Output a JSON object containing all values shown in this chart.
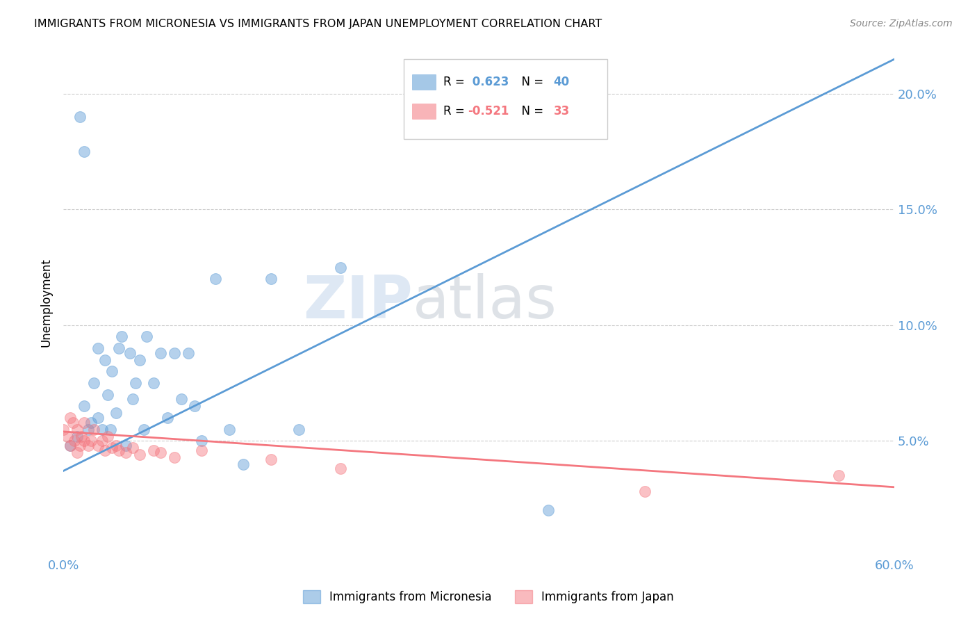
{
  "title": "IMMIGRANTS FROM MICRONESIA VS IMMIGRANTS FROM JAPAN UNEMPLOYMENT CORRELATION CHART",
  "source": "Source: ZipAtlas.com",
  "ylabel": "Unemployment",
  "xlim": [
    0.0,
    0.6
  ],
  "ylim": [
    0.0,
    0.22
  ],
  "yticks": [
    0.05,
    0.1,
    0.15,
    0.2
  ],
  "xtick_labels_shown": [
    0.0,
    0.6
  ],
  "xtick_minor": [
    0.1,
    0.2,
    0.3,
    0.4,
    0.5
  ],
  "grid_color": "#cccccc",
  "background_color": "#ffffff",
  "blue_color": "#5b9bd5",
  "pink_color": "#f4777f",
  "watermark_zip": "ZIP",
  "watermark_atlas": "atlas",
  "legend_R_blue": "0.623",
  "legend_N_blue": "40",
  "legend_R_pink": "-0.521",
  "legend_N_pink": "33",
  "micronesia_x": [
    0.005,
    0.01,
    0.012,
    0.015,
    0.018,
    0.02,
    0.022,
    0.025,
    0.025,
    0.028,
    0.03,
    0.032,
    0.034,
    0.035,
    0.038,
    0.04,
    0.042,
    0.045,
    0.048,
    0.05,
    0.052,
    0.055,
    0.058,
    0.06,
    0.065,
    0.07,
    0.075,
    0.08,
    0.085,
    0.09,
    0.095,
    0.1,
    0.11,
    0.12,
    0.13,
    0.15,
    0.17,
    0.2,
    0.35,
    0.015
  ],
  "micronesia_y": [
    0.048,
    0.052,
    0.19,
    0.065,
    0.055,
    0.058,
    0.075,
    0.06,
    0.09,
    0.055,
    0.085,
    0.07,
    0.055,
    0.08,
    0.062,
    0.09,
    0.095,
    0.048,
    0.088,
    0.068,
    0.075,
    0.085,
    0.055,
    0.095,
    0.075,
    0.088,
    0.06,
    0.088,
    0.068,
    0.088,
    0.065,
    0.05,
    0.12,
    0.055,
    0.04,
    0.12,
    0.055,
    0.125,
    0.02,
    0.175
  ],
  "japan_x": [
    0.0,
    0.003,
    0.005,
    0.005,
    0.007,
    0.008,
    0.01,
    0.01,
    0.012,
    0.013,
    0.015,
    0.015,
    0.018,
    0.02,
    0.022,
    0.025,
    0.028,
    0.03,
    0.032,
    0.035,
    0.038,
    0.04,
    0.045,
    0.05,
    0.055,
    0.065,
    0.07,
    0.08,
    0.1,
    0.15,
    0.2,
    0.42,
    0.56
  ],
  "japan_y": [
    0.055,
    0.052,
    0.048,
    0.06,
    0.058,
    0.05,
    0.045,
    0.055,
    0.048,
    0.052,
    0.05,
    0.058,
    0.048,
    0.05,
    0.055,
    0.048,
    0.05,
    0.046,
    0.052,
    0.047,
    0.048,
    0.046,
    0.045,
    0.047,
    0.044,
    0.046,
    0.045,
    0.043,
    0.046,
    0.042,
    0.038,
    0.028,
    0.035
  ],
  "blue_line_x": [
    0.0,
    0.6
  ],
  "blue_line_y": [
    0.037,
    0.215
  ],
  "pink_line_x": [
    0.0,
    0.6
  ],
  "pink_line_y": [
    0.054,
    0.03
  ]
}
